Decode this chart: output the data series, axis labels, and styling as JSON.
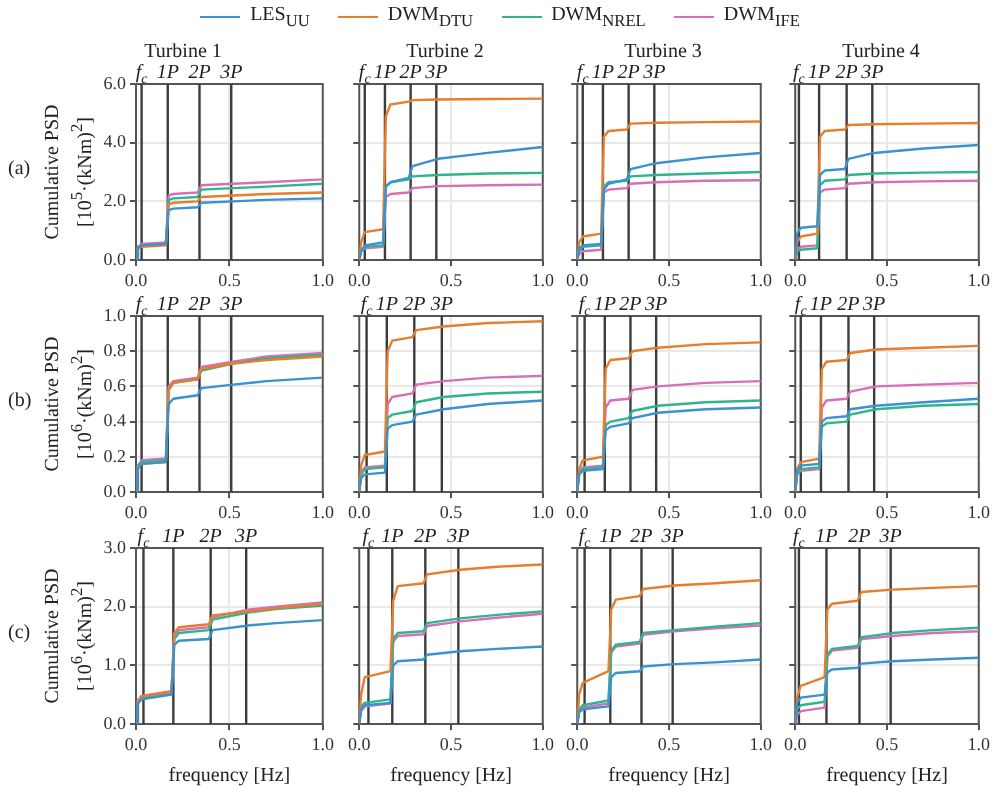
{
  "chart_data": [
    {
      "type": "line",
      "title": "Turbine 1",
      "ylabel": "Cumulative PSD [10$^{5}$·(kNm)$^{2}$]",
      "annotations": [
        "(a)"
      ],
      "legend": "top",
      "grid": true,
      "xlim": [
        0,
        1
      ],
      "xticks": [
        {
          "value": 0,
          "label": "0.0"
        },
        {
          "value": 0.5,
          "label": "0.5"
        },
        {
          "value": 1,
          "label": "1.0"
        }
      ],
      "ylim": [
        0,
        6
      ],
      "yticks": [
        {
          "value": 0,
          "label": "0.0"
        },
        {
          "value": 2,
          "label": "2.0"
        },
        {
          "value": 4,
          "label": "4.0"
        },
        {
          "value": 6,
          "label": "6.0"
        }
      ],
      "ref_lines": [
        {
          "axis": "x",
          "value": 0.03,
          "label": "f$_{c}$"
        },
        {
          "axis": "x",
          "value": 0.17,
          "label": "1P"
        },
        {
          "axis": "x",
          "value": 0.34,
          "label": "2P"
        },
        {
          "axis": "x",
          "value": 0.51,
          "label": "3P"
        }
      ],
      "x": [
        0,
        0.01,
        0.03,
        0.16,
        0.175,
        0.2,
        0.33,
        0.35,
        0.52,
        0.7,
        1.0
      ],
      "series": [
        {
          "name": "LES$_{UU}$",
          "color": "#3a92d0",
          "values": [
            0,
            0.4,
            0.5,
            0.55,
            1.7,
            1.75,
            1.8,
            1.95,
            2.0,
            2.05,
            2.1
          ]
        },
        {
          "name": "DWM$_{DTU}$",
          "color": "#e67e2d",
          "values": [
            0,
            0.4,
            0.45,
            0.5,
            1.9,
            1.95,
            2.0,
            2.15,
            2.2,
            2.25,
            2.3
          ]
        },
        {
          "name": "DWM$_{NREL}$",
          "color": "#2fb58e",
          "values": [
            0,
            0.4,
            0.5,
            0.55,
            2.05,
            2.1,
            2.15,
            2.4,
            2.45,
            2.5,
            2.6
          ]
        },
        {
          "name": "DWM$_{IFE}$",
          "color": "#d66fb8",
          "values": [
            0,
            0.45,
            0.55,
            0.6,
            2.2,
            2.25,
            2.3,
            2.55,
            2.6,
            2.65,
            2.75
          ]
        }
      ]
    },
    {
      "type": "line",
      "title": "Turbine 2",
      "tick_labels": "x",
      "grid": true,
      "xlim": [
        0,
        1
      ],
      "xticks": [
        {
          "value": 0,
          "label": "0.0"
        },
        {
          "value": 0.5,
          "label": "0.5"
        },
        {
          "value": 1,
          "label": "1.0"
        }
      ],
      "ylim": [
        0,
        6
      ],
      "yticks": [
        0,
        2,
        4,
        6
      ],
      "ref_lines": [
        {
          "axis": "x",
          "value": 0.03,
          "label": "f$_{c}$"
        },
        {
          "axis": "x",
          "value": 0.14,
          "label": "1P"
        },
        {
          "axis": "x",
          "value": 0.28,
          "label": "2P"
        },
        {
          "axis": "x",
          "value": 0.42,
          "label": "3P"
        }
      ],
      "x": [
        0,
        0.01,
        0.03,
        0.13,
        0.145,
        0.17,
        0.27,
        0.29,
        0.43,
        0.7,
        1.0
      ],
      "series": [
        {
          "color": "#3a92d0",
          "values": [
            0,
            0.3,
            0.5,
            0.6,
            2.5,
            2.65,
            2.8,
            3.2,
            3.45,
            3.65,
            3.85
          ]
        },
        {
          "color": "#e67e2d",
          "values": [
            0,
            0.6,
            0.95,
            1.05,
            4.9,
            5.3,
            5.4,
            5.45,
            5.47,
            5.49,
            5.5
          ]
        },
        {
          "color": "#2fb58e",
          "values": [
            0,
            0.3,
            0.45,
            0.5,
            2.5,
            2.65,
            2.75,
            2.85,
            2.9,
            2.95,
            2.97
          ]
        },
        {
          "color": "#d66fb8",
          "values": [
            0,
            0.3,
            0.4,
            0.45,
            2.15,
            2.25,
            2.3,
            2.45,
            2.52,
            2.55,
            2.57
          ]
        }
      ]
    },
    {
      "type": "line",
      "title": "Turbine 3",
      "tick_labels": "x",
      "grid": true,
      "xlim": [
        0,
        1
      ],
      "xticks": [
        {
          "value": 0,
          "label": "0.0"
        },
        {
          "value": 0.5,
          "label": "0.5"
        },
        {
          "value": 1,
          "label": "1.0"
        }
      ],
      "ylim": [
        0,
        6
      ],
      "yticks": [
        0,
        2,
        4,
        6
      ],
      "ref_lines": [
        {
          "axis": "x",
          "value": 0.03,
          "label": "f$_{c}$"
        },
        {
          "axis": "x",
          "value": 0.14,
          "label": "1P"
        },
        {
          "axis": "x",
          "value": 0.28,
          "label": "2P"
        },
        {
          "axis": "x",
          "value": 0.42,
          "label": "3P"
        }
      ],
      "x": [
        0,
        0.01,
        0.03,
        0.13,
        0.145,
        0.17,
        0.27,
        0.29,
        0.43,
        0.7,
        1.0
      ],
      "series": [
        {
          "color": "#3a92d0",
          "values": [
            0,
            0.4,
            0.5,
            0.55,
            2.4,
            2.6,
            2.75,
            3.1,
            3.3,
            3.5,
            3.65
          ]
        },
        {
          "color": "#e67e2d",
          "values": [
            0,
            0.6,
            0.8,
            0.9,
            4.2,
            4.4,
            4.45,
            4.65,
            4.68,
            4.7,
            4.72
          ]
        },
        {
          "color": "#2fb58e",
          "values": [
            0,
            0.3,
            0.45,
            0.5,
            2.5,
            2.65,
            2.7,
            2.85,
            2.9,
            2.95,
            3.0
          ]
        },
        {
          "color": "#d66fb8",
          "values": [
            0,
            0.2,
            0.3,
            0.35,
            2.3,
            2.4,
            2.45,
            2.6,
            2.65,
            2.7,
            2.72
          ]
        }
      ]
    },
    {
      "type": "line",
      "title": "Turbine 4",
      "tick_labels": "x",
      "grid": true,
      "xlim": [
        0,
        1
      ],
      "xticks": [
        {
          "value": 0,
          "label": "0.0"
        },
        {
          "value": 0.5,
          "label": "0.5"
        },
        {
          "value": 1,
          "label": "1.0"
        }
      ],
      "ylim": [
        0,
        6
      ],
      "yticks": [
        0,
        2,
        4,
        6
      ],
      "ref_lines": [
        {
          "axis": "x",
          "value": 0.02,
          "label": "f$_{c}$"
        },
        {
          "axis": "x",
          "value": 0.13,
          "label": "1P"
        },
        {
          "axis": "x",
          "value": 0.28,
          "label": "2P"
        },
        {
          "axis": "x",
          "value": 0.42,
          "label": "3P"
        }
      ],
      "x": [
        0,
        0.01,
        0.03,
        0.12,
        0.135,
        0.16,
        0.27,
        0.29,
        0.43,
        0.7,
        1.0
      ],
      "series": [
        {
          "color": "#3a92d0",
          "values": [
            0,
            0.9,
            1.1,
            1.15,
            2.9,
            3.05,
            3.1,
            3.45,
            3.65,
            3.8,
            3.92
          ]
        },
        {
          "color": "#e67e2d",
          "values": [
            0,
            0.6,
            0.8,
            0.9,
            4.2,
            4.4,
            4.45,
            4.6,
            4.63,
            4.65,
            4.67
          ]
        },
        {
          "color": "#2fb58e",
          "values": [
            0,
            0.3,
            0.35,
            0.4,
            2.55,
            2.7,
            2.75,
            2.9,
            2.95,
            2.98,
            3.0
          ]
        },
        {
          "color": "#d66fb8",
          "values": [
            0,
            0.35,
            0.45,
            0.5,
            2.3,
            2.4,
            2.45,
            2.6,
            2.65,
            2.68,
            2.7
          ]
        }
      ]
    },
    {
      "type": "line",
      "ylabel": "Cumulative PSD [10$^{6}$·(kNm)$^{2}$]",
      "annotations": [
        "(b)"
      ],
      "grid": true,
      "xlim": [
        0,
        1
      ],
      "xticks": [
        {
          "value": 0,
          "label": "0.0"
        },
        {
          "value": 0.5,
          "label": "0.5"
        },
        {
          "value": 1,
          "label": "1.0"
        }
      ],
      "ylim": [
        0,
        1
      ],
      "yticks": [
        {
          "value": 0,
          "label": "0.0"
        },
        0.2,
        0.4,
        0.6,
        0.8,
        {
          "value": 1,
          "label": "1.0"
        }
      ],
      "ref_lines": [
        {
          "axis": "x",
          "value": 0.03,
          "label": "f$_{c}$"
        },
        {
          "axis": "x",
          "value": 0.17,
          "label": "1P"
        },
        {
          "axis": "x",
          "value": 0.34,
          "label": "2P"
        },
        {
          "axis": "x",
          "value": 0.51,
          "label": "3P"
        }
      ],
      "x": [
        0,
        0.01,
        0.03,
        0.16,
        0.175,
        0.2,
        0.33,
        0.35,
        0.52,
        0.7,
        1.0
      ],
      "series": [
        {
          "color": "#3a92d0",
          "values": [
            0,
            0.13,
            0.16,
            0.17,
            0.5,
            0.53,
            0.55,
            0.59,
            0.61,
            0.63,
            0.65
          ]
        },
        {
          "color": "#e67e2d",
          "values": [
            0,
            0.14,
            0.16,
            0.17,
            0.58,
            0.62,
            0.64,
            0.7,
            0.73,
            0.75,
            0.77
          ]
        },
        {
          "color": "#2fb58e",
          "values": [
            0,
            0.15,
            0.17,
            0.18,
            0.58,
            0.62,
            0.64,
            0.69,
            0.73,
            0.76,
            0.78
          ]
        },
        {
          "color": "#d66fb8",
          "values": [
            0,
            0.15,
            0.18,
            0.19,
            0.6,
            0.63,
            0.65,
            0.71,
            0.74,
            0.77,
            0.79
          ]
        }
      ]
    },
    {
      "type": "line",
      "tick_labels": "x",
      "grid": true,
      "xlim": [
        0,
        1
      ],
      "xticks": [
        {
          "value": 0,
          "label": "0.0"
        },
        {
          "value": 0.5,
          "label": "0.5"
        },
        {
          "value": 1,
          "label": "1.0"
        }
      ],
      "ylim": [
        0,
        1
      ],
      "yticks": [
        0,
        0.2,
        0.4,
        0.6,
        0.8,
        1
      ],
      "ref_lines": [
        {
          "axis": "x",
          "value": 0.04,
          "label": "f$_{c}$"
        },
        {
          "axis": "x",
          "value": 0.15,
          "label": "1P"
        },
        {
          "axis": "x",
          "value": 0.3,
          "label": "2P"
        },
        {
          "axis": "x",
          "value": 0.45,
          "label": "3P"
        }
      ],
      "x": [
        0,
        0.01,
        0.03,
        0.14,
        0.155,
        0.18,
        0.29,
        0.31,
        0.46,
        0.7,
        1.0
      ],
      "series": [
        {
          "color": "#3a92d0",
          "values": [
            0,
            0.08,
            0.1,
            0.11,
            0.36,
            0.38,
            0.4,
            0.44,
            0.47,
            0.5,
            0.52
          ]
        },
        {
          "color": "#e67e2d",
          "values": [
            0,
            0.15,
            0.21,
            0.23,
            0.8,
            0.86,
            0.88,
            0.92,
            0.94,
            0.96,
            0.97
          ]
        },
        {
          "color": "#2fb58e",
          "values": [
            0,
            0.1,
            0.13,
            0.14,
            0.42,
            0.44,
            0.46,
            0.51,
            0.54,
            0.56,
            0.57
          ]
        },
        {
          "color": "#d66fb8",
          "values": [
            0,
            0.11,
            0.14,
            0.15,
            0.5,
            0.54,
            0.56,
            0.61,
            0.63,
            0.65,
            0.66
          ]
        }
      ]
    },
    {
      "type": "line",
      "tick_labels": "x",
      "grid": true,
      "xlim": [
        0,
        1
      ],
      "xticks": [
        {
          "value": 0,
          "label": "0.0"
        },
        {
          "value": 0.5,
          "label": "0.5"
        },
        {
          "value": 1,
          "label": "1.0"
        }
      ],
      "ylim": [
        0,
        1
      ],
      "yticks": [
        0,
        0.2,
        0.4,
        0.6,
        0.8,
        1
      ],
      "ref_lines": [
        {
          "axis": "x",
          "value": 0.04,
          "label": "f$_{c}$"
        },
        {
          "axis": "x",
          "value": 0.15,
          "label": "1P"
        },
        {
          "axis": "x",
          "value": 0.29,
          "label": "2P"
        },
        {
          "axis": "x",
          "value": 0.43,
          "label": "3P"
        }
      ],
      "x": [
        0,
        0.01,
        0.03,
        0.14,
        0.155,
        0.18,
        0.28,
        0.3,
        0.44,
        0.7,
        1.0
      ],
      "series": [
        {
          "color": "#3a92d0",
          "values": [
            0,
            0.1,
            0.12,
            0.13,
            0.35,
            0.37,
            0.39,
            0.42,
            0.45,
            0.47,
            0.48
          ]
        },
        {
          "color": "#e67e2d",
          "values": [
            0,
            0.13,
            0.18,
            0.2,
            0.7,
            0.75,
            0.76,
            0.8,
            0.82,
            0.84,
            0.85
          ]
        },
        {
          "color": "#2fb58e",
          "values": [
            0,
            0.1,
            0.13,
            0.14,
            0.38,
            0.4,
            0.42,
            0.46,
            0.49,
            0.51,
            0.52
          ]
        },
        {
          "color": "#d66fb8",
          "values": [
            0,
            0.11,
            0.14,
            0.15,
            0.48,
            0.52,
            0.53,
            0.58,
            0.6,
            0.62,
            0.63
          ]
        }
      ]
    },
    {
      "type": "line",
      "tick_labels": "x",
      "grid": true,
      "xlim": [
        0,
        1
      ],
      "xticks": [
        {
          "value": 0,
          "label": "0.0"
        },
        {
          "value": 0.5,
          "label": "0.5"
        },
        {
          "value": 1,
          "label": "1.0"
        }
      ],
      "ylim": [
        0,
        1
      ],
      "yticks": [
        0,
        0.2,
        0.4,
        0.6,
        0.8,
        1
      ],
      "ref_lines": [
        {
          "axis": "x",
          "value": 0.03,
          "label": "f$_{c}$"
        },
        {
          "axis": "x",
          "value": 0.14,
          "label": "1P"
        },
        {
          "axis": "x",
          "value": 0.29,
          "label": "2P"
        },
        {
          "axis": "x",
          "value": 0.43,
          "label": "3P"
        }
      ],
      "x": [
        0,
        0.01,
        0.03,
        0.13,
        0.145,
        0.17,
        0.28,
        0.3,
        0.44,
        0.7,
        1.0
      ],
      "series": [
        {
          "color": "#3a92d0",
          "values": [
            0,
            0.12,
            0.15,
            0.16,
            0.4,
            0.42,
            0.43,
            0.47,
            0.49,
            0.51,
            0.53
          ]
        },
        {
          "color": "#e67e2d",
          "values": [
            0,
            0.13,
            0.17,
            0.19,
            0.7,
            0.74,
            0.75,
            0.79,
            0.81,
            0.82,
            0.83
          ]
        },
        {
          "color": "#2fb58e",
          "values": [
            0,
            0.1,
            0.13,
            0.14,
            0.37,
            0.39,
            0.4,
            0.44,
            0.47,
            0.49,
            0.5
          ]
        },
        {
          "color": "#d66fb8",
          "values": [
            0,
            0.1,
            0.12,
            0.13,
            0.48,
            0.52,
            0.53,
            0.57,
            0.6,
            0.61,
            0.62
          ]
        }
      ]
    },
    {
      "type": "line",
      "ylabel": "Cumulative PSD [10$^{6}$·(kNm)$^{2}$]",
      "xlabel": "frequency [Hz]",
      "annotations": [
        "(c)"
      ],
      "grid": true,
      "xlim": [
        0,
        1
      ],
      "xticks": [
        {
          "value": 0,
          "label": "0.0"
        },
        {
          "value": 0.5,
          "label": "0.5"
        },
        {
          "value": 1,
          "label": "1.0"
        }
      ],
      "ylim": [
        0,
        3
      ],
      "yticks": [
        {
          "value": 0,
          "label": "0.0"
        },
        {
          "value": 1,
          "label": "1.0"
        },
        {
          "value": 2,
          "label": "2.0"
        },
        {
          "value": 3,
          "label": "3.0"
        }
      ],
      "ref_lines": [
        {
          "axis": "x",
          "value": 0.04,
          "label": "f$_{c}$"
        },
        {
          "axis": "x",
          "value": 0.2,
          "label": "1P"
        },
        {
          "axis": "x",
          "value": 0.4,
          "label": "2P"
        },
        {
          "axis": "x",
          "value": 0.59,
          "label": "3P"
        }
      ],
      "x": [
        0,
        0.01,
        0.03,
        0.19,
        0.205,
        0.23,
        0.39,
        0.41,
        0.6,
        0.75,
        1.0
      ],
      "series": [
        {
          "color": "#3a92d0",
          "values": [
            0,
            0.35,
            0.42,
            0.5,
            1.35,
            1.42,
            1.45,
            1.6,
            1.68,
            1.72,
            1.77
          ]
        },
        {
          "color": "#e67e2d",
          "values": [
            0,
            0.4,
            0.47,
            0.55,
            1.55,
            1.65,
            1.7,
            1.85,
            1.92,
            1.97,
            2.05
          ]
        },
        {
          "color": "#2fb58e",
          "values": [
            0,
            0.38,
            0.45,
            0.53,
            1.45,
            1.55,
            1.6,
            1.78,
            1.9,
            1.96,
            2.02
          ]
        },
        {
          "color": "#d66fb8",
          "values": [
            0,
            0.4,
            0.48,
            0.56,
            1.5,
            1.6,
            1.65,
            1.82,
            1.95,
            2.0,
            2.07
          ]
        }
      ]
    },
    {
      "type": "line",
      "xlabel": "frequency [Hz]",
      "tick_labels": "x",
      "grid": true,
      "xlim": [
        0,
        1
      ],
      "xticks": [
        {
          "value": 0,
          "label": "0.0"
        },
        {
          "value": 0.5,
          "label": "0.5"
        },
        {
          "value": 1,
          "label": "1.0"
        }
      ],
      "ylim": [
        0,
        3
      ],
      "yticks": [
        0,
        1,
        2,
        3
      ],
      "ref_lines": [
        {
          "axis": "x",
          "value": 0.05,
          "label": "f$_{c}$"
        },
        {
          "axis": "x",
          "value": 0.18,
          "label": "1P"
        },
        {
          "axis": "x",
          "value": 0.36,
          "label": "2P"
        },
        {
          "axis": "x",
          "value": 0.54,
          "label": "3P"
        }
      ],
      "x": [
        0,
        0.01,
        0.03,
        0.17,
        0.185,
        0.21,
        0.35,
        0.37,
        0.55,
        0.75,
        1.0
      ],
      "series": [
        {
          "color": "#3a92d0",
          "values": [
            0,
            0.25,
            0.32,
            0.36,
            1.0,
            1.07,
            1.1,
            1.18,
            1.24,
            1.28,
            1.32
          ]
        },
        {
          "color": "#e67e2d",
          "values": [
            0,
            0.5,
            0.8,
            0.9,
            2.1,
            2.35,
            2.4,
            2.55,
            2.63,
            2.68,
            2.72
          ]
        },
        {
          "color": "#2fb58e",
          "values": [
            0,
            0.3,
            0.36,
            0.42,
            1.45,
            1.55,
            1.58,
            1.72,
            1.8,
            1.86,
            1.92
          ]
        },
        {
          "color": "#d66fb8",
          "values": [
            0,
            0.22,
            0.3,
            0.35,
            1.4,
            1.5,
            1.53,
            1.67,
            1.75,
            1.81,
            1.88
          ]
        }
      ]
    },
    {
      "type": "line",
      "xlabel": "frequency [Hz]",
      "tick_labels": "x",
      "grid": true,
      "xlim": [
        0,
        1
      ],
      "xticks": [
        {
          "value": 0,
          "label": "0.0"
        },
        {
          "value": 0.5,
          "label": "0.5"
        },
        {
          "value": 1,
          "label": "1.0"
        }
      ],
      "ylim": [
        0,
        3
      ],
      "yticks": [
        0,
        1,
        2,
        3
      ],
      "ref_lines": [
        {
          "axis": "x",
          "value": 0.04,
          "label": "f$_{c}$"
        },
        {
          "axis": "x",
          "value": 0.18,
          "label": "1P"
        },
        {
          "axis": "x",
          "value": 0.35,
          "label": "2P"
        },
        {
          "axis": "x",
          "value": 0.52,
          "label": "3P"
        }
      ],
      "x": [
        0,
        0.01,
        0.03,
        0.17,
        0.185,
        0.21,
        0.34,
        0.36,
        0.53,
        0.75,
        1.0
      ],
      "series": [
        {
          "color": "#3a92d0",
          "values": [
            0,
            0.2,
            0.25,
            0.3,
            0.8,
            0.87,
            0.9,
            0.98,
            1.02,
            1.05,
            1.1
          ]
        },
        {
          "color": "#e67e2d",
          "values": [
            0,
            0.5,
            0.7,
            0.9,
            1.95,
            2.12,
            2.18,
            2.3,
            2.36,
            2.4,
            2.45
          ]
        },
        {
          "color": "#2fb58e",
          "values": [
            0,
            0.25,
            0.32,
            0.4,
            1.25,
            1.35,
            1.4,
            1.55,
            1.6,
            1.66,
            1.72
          ]
        },
        {
          "color": "#d66fb8",
          "values": [
            0,
            0.22,
            0.28,
            0.35,
            1.22,
            1.32,
            1.37,
            1.52,
            1.58,
            1.63,
            1.68
          ]
        }
      ]
    },
    {
      "type": "line",
      "xlabel": "frequency [Hz]",
      "tick_labels": "x",
      "grid": true,
      "xlim": [
        0,
        1
      ],
      "xticks": [
        {
          "value": 0,
          "label": "0.0"
        },
        {
          "value": 0.5,
          "label": "0.5"
        },
        {
          "value": 1,
          "label": "1.0"
        }
      ],
      "ylim": [
        0,
        3
      ],
      "yticks": [
        0,
        1,
        2,
        3
      ],
      "ref_lines": [
        {
          "axis": "x",
          "value": 0.02,
          "label": "f$_{c}$"
        },
        {
          "axis": "x",
          "value": 0.17,
          "label": "1P"
        },
        {
          "axis": "x",
          "value": 0.35,
          "label": "2P"
        },
        {
          "axis": "x",
          "value": 0.52,
          "label": "3P"
        }
      ],
      "x": [
        0,
        0.01,
        0.03,
        0.16,
        0.175,
        0.2,
        0.34,
        0.36,
        0.53,
        0.75,
        1.0
      ],
      "series": [
        {
          "color": "#3a92d0",
          "values": [
            0,
            0.35,
            0.45,
            0.5,
            0.88,
            0.93,
            0.96,
            1.03,
            1.07,
            1.1,
            1.13
          ]
        },
        {
          "color": "#e67e2d",
          "values": [
            0,
            0.45,
            0.65,
            0.8,
            1.95,
            2.05,
            2.1,
            2.25,
            2.29,
            2.32,
            2.35
          ]
        },
        {
          "color": "#2fb58e",
          "values": [
            0,
            0.25,
            0.32,
            0.38,
            1.18,
            1.28,
            1.33,
            1.48,
            1.55,
            1.6,
            1.64
          ]
        },
        {
          "color": "#d66fb8",
          "values": [
            0,
            0.15,
            0.22,
            0.28,
            1.15,
            1.25,
            1.3,
            1.45,
            1.5,
            1.55,
            1.58
          ]
        }
      ]
    }
  ]
}
